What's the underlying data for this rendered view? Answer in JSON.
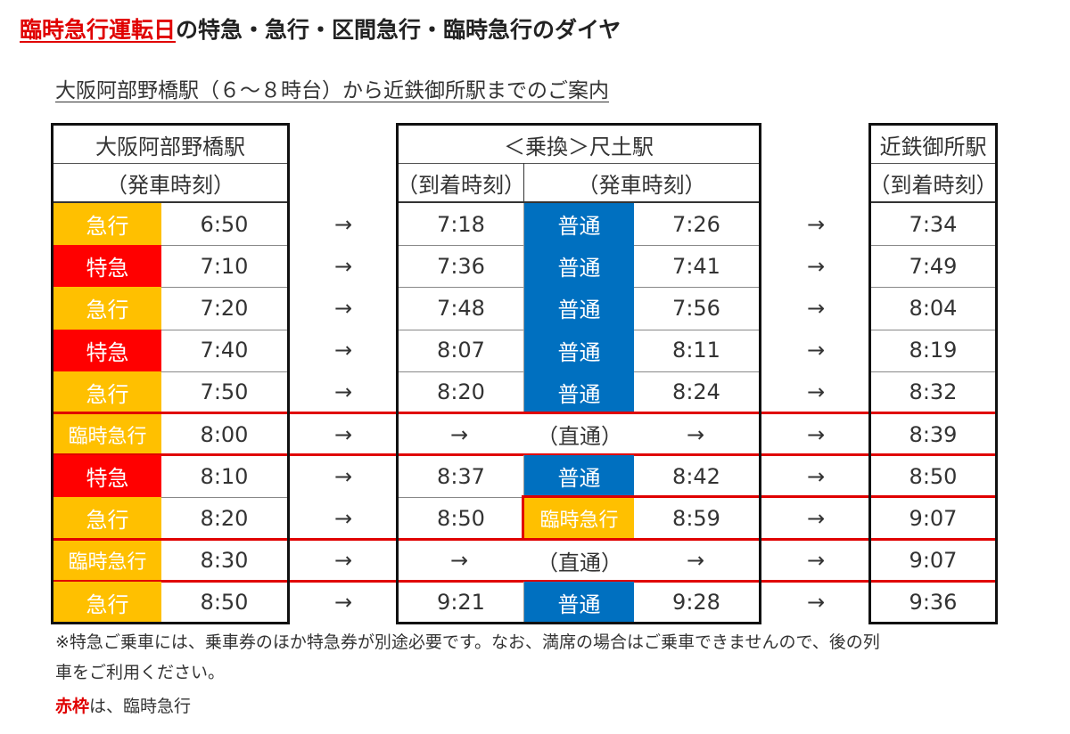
{
  "title": {
    "red_part": "臨時急行運転日",
    "rest": "の特急・急行・区間急行・臨時急行のダイヤ"
  },
  "subtitle": "大阪阿部野橋駅（６～８時台）から近鉄御所駅までのご案内",
  "headers": {
    "origin_station": "大阪阿部野橋駅",
    "origin_sub": "（発車時刻）",
    "transfer_station": "＜乗換＞尺土駅",
    "transfer_arr": "（到着時刻）",
    "transfer_dep": "（発車時刻）",
    "dest_station": "近鉄御所駅",
    "dest_sub": "（到着時刻）"
  },
  "colors": {
    "express": "#ffc000",
    "limited_express": "#ff0000",
    "local": "#0070c0",
    "frame": "#e00000"
  },
  "rows": [
    {
      "type": "急行",
      "dep": "6:50",
      "arr_sh": "7:18",
      "type2": "普通",
      "dep_sh": "7:26",
      "arr_gs": "7:34"
    },
    {
      "type": "特急",
      "dep": "7:10",
      "arr_sh": "7:36",
      "type2": "普通",
      "dep_sh": "7:41",
      "arr_gs": "7:49"
    },
    {
      "type": "急行",
      "dep": "7:20",
      "arr_sh": "7:48",
      "type2": "普通",
      "dep_sh": "7:56",
      "arr_gs": "8:04"
    },
    {
      "type": "特急",
      "dep": "7:40",
      "arr_sh": "8:07",
      "type2": "普通",
      "dep_sh": "8:11",
      "arr_gs": "8:19"
    },
    {
      "type": "急行",
      "dep": "7:50",
      "arr_sh": "8:20",
      "type2": "普通",
      "dep_sh": "8:24",
      "arr_gs": "8:32"
    },
    {
      "type": "臨時急行",
      "dep": "8:00",
      "through": "（直通）",
      "arr_gs": "8:39"
    },
    {
      "type": "特急",
      "dep": "8:10",
      "arr_sh": "8:37",
      "type2": "普通",
      "dep_sh": "8:42",
      "arr_gs": "8:50"
    },
    {
      "type": "急行",
      "dep": "8:20",
      "arr_sh": "8:50",
      "type2": "臨時急行",
      "dep_sh": "8:59",
      "arr_gs": "9:07"
    },
    {
      "type": "臨時急行",
      "dep": "8:30",
      "through": "（直通）",
      "arr_gs": "9:07"
    },
    {
      "type": "急行",
      "dep": "8:50",
      "arr_sh": "9:21",
      "type2": "普通",
      "dep_sh": "9:28",
      "arr_gs": "9:36"
    }
  ],
  "arrow": "→",
  "notes": {
    "line1": "※特急ご乗車には、乗車券のほか特急券が別途必要です。なお、満席の場合はご乗車できませんので、後の列",
    "line2": "車をご利用ください。",
    "legend_red": "赤枠",
    "legend_rest": "は、臨時急行"
  }
}
